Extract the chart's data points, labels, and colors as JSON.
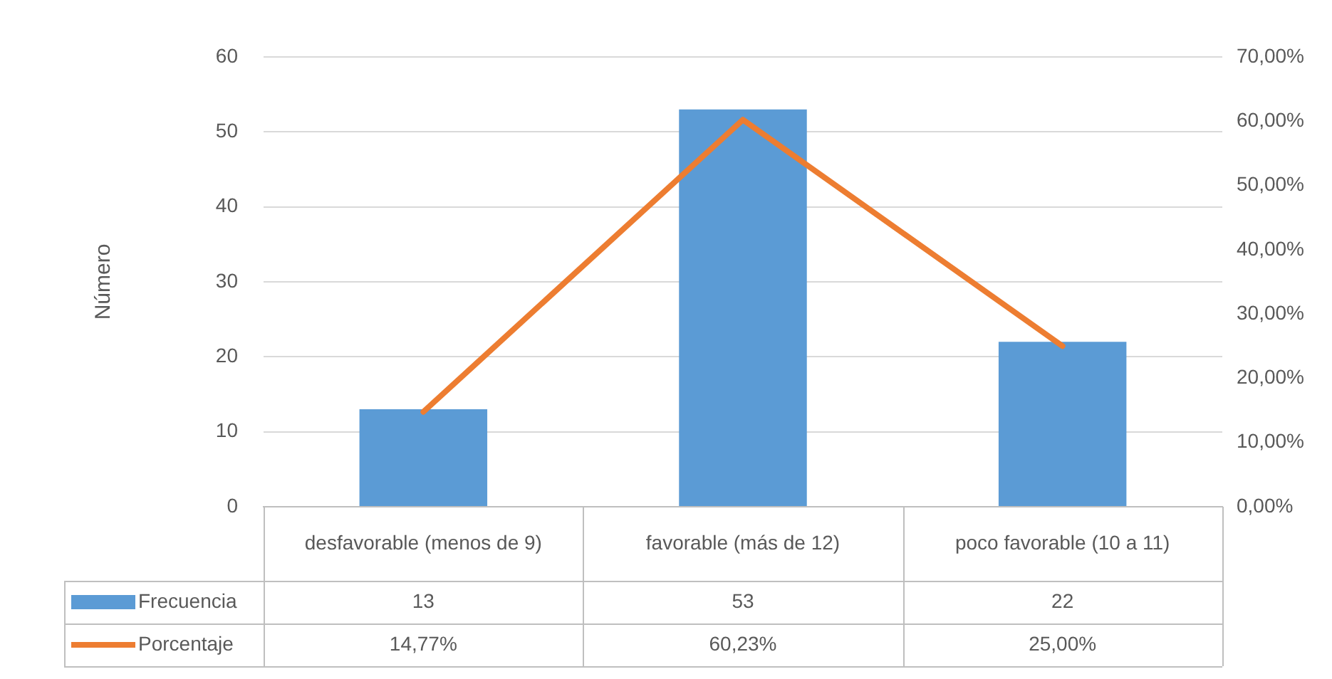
{
  "chart_data": {
    "type": "bar",
    "ylabel": "Número",
    "categories": [
      "desfavorable (menos de 9)",
      "favorable (más de 12)",
      "poco favorable (10 a 11)"
    ],
    "series": [
      {
        "name": "Frecuencia",
        "color": "#5b9bd5",
        "values": [
          13,
          53,
          22
        ],
        "value_labels": [
          "13",
          "53",
          "22"
        ]
      },
      {
        "name": "Porcentaje",
        "type": "line",
        "axis": "y2",
        "color": "#ed7d31",
        "values": [
          14.77,
          60.23,
          25.0
        ],
        "value_labels": [
          "14,77%",
          "60,23%",
          "25,00%"
        ],
        "marker": "none"
      }
    ],
    "ylim": [
      0,
      60
    ],
    "yticks": [
      0,
      10,
      20,
      30,
      40,
      50,
      60
    ],
    "y2lim": [
      0,
      70
    ],
    "y2ticks": [
      {
        "value": 0,
        "label": "0,00%"
      },
      {
        "value": 10,
        "label": "10,00%"
      },
      {
        "value": 20,
        "label": "20,00%"
      },
      {
        "value": 30,
        "label": "30,00%"
      },
      {
        "value": 40,
        "label": "40,00%"
      },
      {
        "value": 50,
        "label": "50,00%"
      },
      {
        "value": 60,
        "label": "60,00%"
      },
      {
        "value": 70,
        "label": "70,00%"
      }
    ],
    "grid": "y",
    "legend": "bottom"
  }
}
